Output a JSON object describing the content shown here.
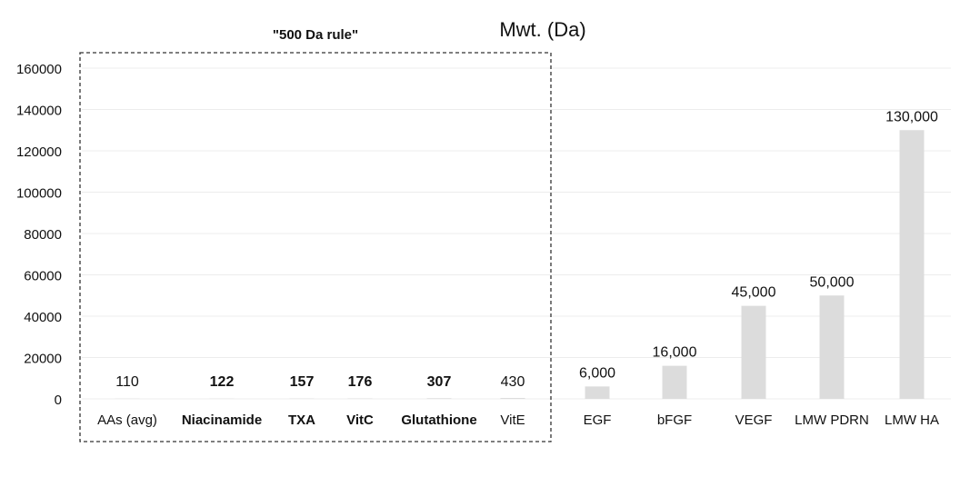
{
  "chart_data": {
    "type": "bar",
    "title": "Mwt. (Da)",
    "ylim": [
      0,
      160000
    ],
    "yticks": [
      0,
      20000,
      40000,
      60000,
      80000,
      100000,
      120000,
      140000,
      160000
    ],
    "grid": true,
    "bar_color": "#dcdcdc",
    "grid_color": "#ececec",
    "categories": [
      "AAs (avg)",
      "Niacinamide",
      "TXA",
      "VitC",
      "Glutathione",
      "VitE",
      "EGF",
      "bFGF",
      "VEGF",
      "LMW PDRN",
      "LMW HA"
    ],
    "values": [
      110,
      122,
      157,
      176,
      307,
      430,
      6000,
      16000,
      45000,
      50000,
      130000
    ],
    "value_labels": [
      "110",
      "122",
      "157",
      "176",
      "307",
      "430",
      "6,000",
      "16,000",
      "45,000",
      "50,000",
      "130,000"
    ],
    "emphasized": [
      false,
      true,
      true,
      true,
      true,
      false,
      false,
      false,
      false,
      false,
      false
    ],
    "annotation": {
      "label": "\"500 Da rule\"",
      "group": [
        "AAs (avg)",
        "Niacinamide",
        "TXA",
        "VitC",
        "Glutathione",
        "VitE"
      ]
    }
  }
}
